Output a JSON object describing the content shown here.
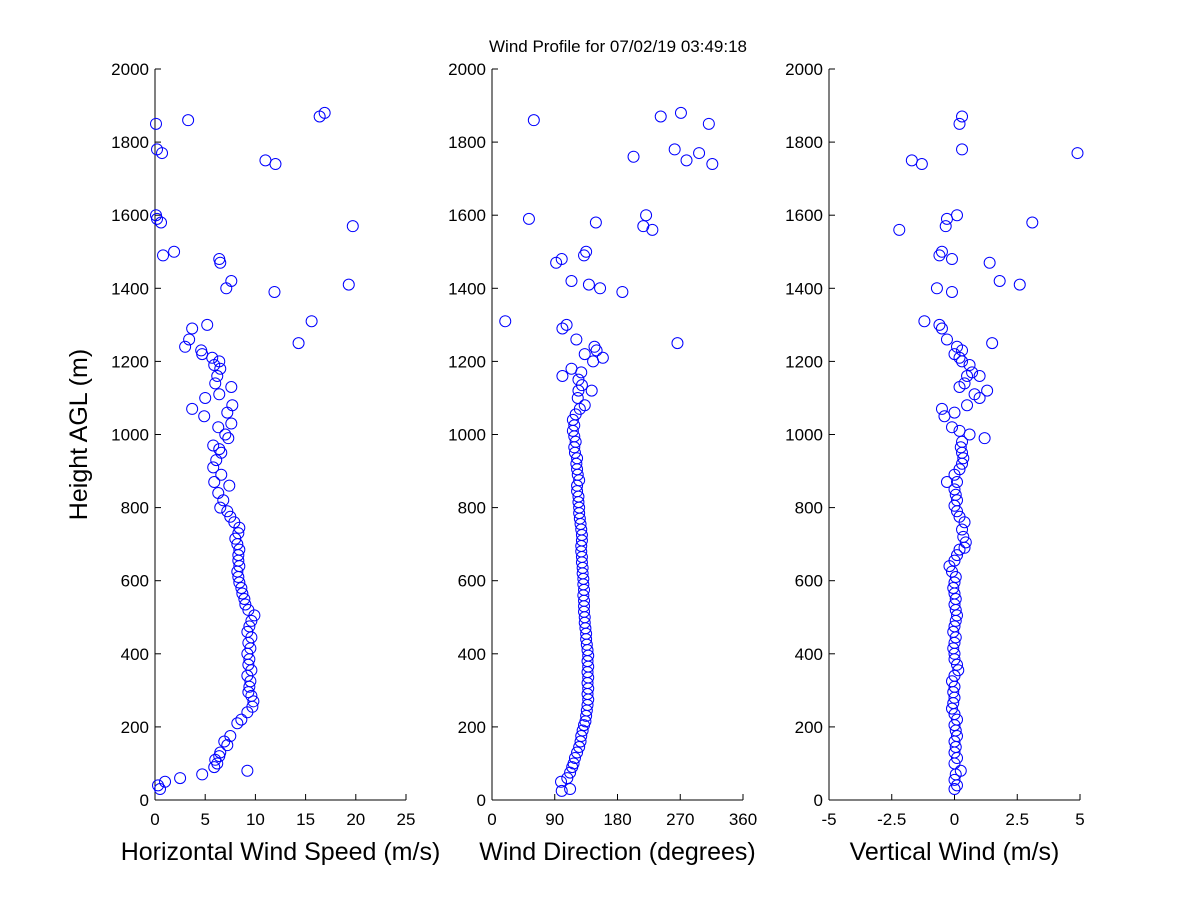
{
  "title": "Wind Profile for  07/02/19 03:49:18",
  "chart_data": [
    {
      "type": "scatter",
      "xlabel": "Horizontal Wind Speed (m/s)",
      "ylabel": "Height AGL (m)",
      "xlim": [
        0,
        25
      ],
      "ylim": [
        0,
        2000
      ],
      "xticks": [
        "0",
        "5",
        "10",
        "15",
        "20",
        "25"
      ],
      "yticks": [
        "0",
        "200",
        "400",
        "600",
        "800",
        "1000",
        "1200",
        "1400",
        "1600",
        "1800",
        "2000"
      ],
      "marker_color": "#0000ff",
      "points": [
        [
          0.5,
          30
        ],
        [
          0.3,
          40
        ],
        [
          1.0,
          50
        ],
        [
          2.5,
          60
        ],
        [
          4.7,
          70
        ],
        [
          9.2,
          80
        ],
        [
          5.9,
          90
        ],
        [
          6.2,
          100
        ],
        [
          6.0,
          110
        ],
        [
          6.4,
          120
        ],
        [
          6.5,
          130
        ],
        [
          7.2,
          150
        ],
        [
          6.9,
          160
        ],
        [
          7.5,
          175
        ],
        [
          8.2,
          210
        ],
        [
          8.6,
          220
        ],
        [
          9.2,
          240
        ],
        [
          9.7,
          255
        ],
        [
          9.8,
          270
        ],
        [
          9.6,
          285
        ],
        [
          9.3,
          295
        ],
        [
          9.4,
          310
        ],
        [
          9.5,
          325
        ],
        [
          9.2,
          340
        ],
        [
          9.6,
          355
        ],
        [
          9.3,
          370
        ],
        [
          9.4,
          385
        ],
        [
          9.2,
          400
        ],
        [
          9.5,
          415
        ],
        [
          9.3,
          430
        ],
        [
          9.6,
          445
        ],
        [
          9.2,
          460
        ],
        [
          9.4,
          475
        ],
        [
          9.6,
          490
        ],
        [
          9.9,
          505
        ],
        [
          9.3,
          520
        ],
        [
          9.0,
          535
        ],
        [
          8.9,
          550
        ],
        [
          8.7,
          565
        ],
        [
          8.6,
          580
        ],
        [
          8.4,
          595
        ],
        [
          8.3,
          610
        ],
        [
          8.2,
          625
        ],
        [
          8.4,
          640
        ],
        [
          8.3,
          655
        ],
        [
          8.3,
          670
        ],
        [
          8.4,
          685
        ],
        [
          8.2,
          700
        ],
        [
          8.0,
          715
        ],
        [
          8.3,
          730
        ],
        [
          8.4,
          745
        ],
        [
          7.9,
          760
        ],
        [
          7.5,
          775
        ],
        [
          7.2,
          790
        ],
        [
          6.5,
          800
        ],
        [
          6.8,
          820
        ],
        [
          6.3,
          840
        ],
        [
          7.4,
          860
        ],
        [
          5.9,
          870
        ],
        [
          6.6,
          890
        ],
        [
          5.8,
          910
        ],
        [
          6.1,
          930
        ],
        [
          6.6,
          950
        ],
        [
          6.4,
          960
        ],
        [
          5.8,
          970
        ],
        [
          7.3,
          990
        ],
        [
          7.0,
          1000
        ],
        [
          6.3,
          1020
        ],
        [
          7.6,
          1030
        ],
        [
          4.9,
          1050
        ],
        [
          7.2,
          1060
        ],
        [
          7.7,
          1080
        ],
        [
          3.7,
          1070
        ],
        [
          5.0,
          1100
        ],
        [
          6.4,
          1110
        ],
        [
          7.6,
          1130
        ],
        [
          6.0,
          1140
        ],
        [
          6.2,
          1160
        ],
        [
          6.5,
          1180
        ],
        [
          5.9,
          1190
        ],
        [
          6.4,
          1200
        ],
        [
          5.7,
          1210
        ],
        [
          4.7,
          1220
        ],
        [
          4.6,
          1230
        ],
        [
          3.0,
          1240
        ],
        [
          3.4,
          1260
        ],
        [
          3.7,
          1290
        ],
        [
          5.2,
          1300
        ],
        [
          14.3,
          1250
        ],
        [
          15.6,
          1310
        ],
        [
          7.1,
          1400
        ],
        [
          7.6,
          1420
        ],
        [
          11.9,
          1390
        ],
        [
          19.3,
          1410
        ],
        [
          6.5,
          1470
        ],
        [
          6.4,
          1480
        ],
        [
          0.8,
          1490
        ],
        [
          1.9,
          1500
        ],
        [
          0.1,
          1600
        ],
        [
          0.6,
          1580
        ],
        [
          0.2,
          1590
        ],
        [
          19.7,
          1570
        ],
        [
          11.0,
          1750
        ],
        [
          12.0,
          1740
        ],
        [
          0.7,
          1770
        ],
        [
          0.2,
          1780
        ],
        [
          0.1,
          1850
        ],
        [
          3.3,
          1860
        ],
        [
          16.4,
          1870
        ],
        [
          16.9,
          1880
        ]
      ]
    },
    {
      "type": "scatter",
      "xlabel": "Wind Direction (degrees)",
      "ylabel": "",
      "xlim": [
        0,
        360
      ],
      "ylim": [
        0,
        2000
      ],
      "xticks": [
        "0",
        "90",
        "180",
        "270",
        "360"
      ],
      "yticks": [
        "0",
        "200",
        "400",
        "600",
        "800",
        "1000",
        "1200",
        "1400",
        "1600",
        "1800",
        "2000"
      ],
      "marker_color": "#0000ff",
      "points": [
        [
          100,
          25
        ],
        [
          112,
          30
        ],
        [
          99,
          50
        ],
        [
          108,
          60
        ],
        [
          112,
          75
        ],
        [
          115,
          90
        ],
        [
          117,
          100
        ],
        [
          119,
          115
        ],
        [
          122,
          130
        ],
        [
          125,
          145
        ],
        [
          127,
          160
        ],
        [
          128,
          175
        ],
        [
          130,
          190
        ],
        [
          132,
          205
        ],
        [
          134,
          215
        ],
        [
          135,
          230
        ],
        [
          136,
          245
        ],
        [
          137,
          260
        ],
        [
          138,
          275
        ],
        [
          137,
          290
        ],
        [
          138,
          305
        ],
        [
          137,
          320
        ],
        [
          138,
          335
        ],
        [
          137,
          350
        ],
        [
          138,
          365
        ],
        [
          137,
          380
        ],
        [
          138,
          395
        ],
        [
          137,
          410
        ],
        [
          136,
          425
        ],
        [
          135,
          440
        ],
        [
          135,
          455
        ],
        [
          134,
          470
        ],
        [
          133,
          485
        ],
        [
          133,
          500
        ],
        [
          132,
          515
        ],
        [
          132,
          530
        ],
        [
          132,
          545
        ],
        [
          131,
          560
        ],
        [
          132,
          575
        ],
        [
          131,
          590
        ],
        [
          131,
          605
        ],
        [
          130,
          620
        ],
        [
          130,
          635
        ],
        [
          129,
          650
        ],
        [
          129,
          665
        ],
        [
          128,
          680
        ],
        [
          128,
          695
        ],
        [
          129,
          710
        ],
        [
          129,
          725
        ],
        [
          128,
          740
        ],
        [
          127,
          755
        ],
        [
          126,
          770
        ],
        [
          125,
          785
        ],
        [
          125,
          800
        ],
        [
          124,
          815
        ],
        [
          124,
          830
        ],
        [
          122,
          845
        ],
        [
          122,
          860
        ],
        [
          125,
          875
        ],
        [
          123,
          890
        ],
        [
          122,
          905
        ],
        [
          121,
          920
        ],
        [
          122,
          935
        ],
        [
          119,
          950
        ],
        [
          118,
          965
        ],
        [
          120,
          980
        ],
        [
          118,
          995
        ],
        [
          116,
          1010
        ],
        [
          118,
          1025
        ],
        [
          116,
          1040
        ],
        [
          120,
          1055
        ],
        [
          126,
          1070
        ],
        [
          133,
          1080
        ],
        [
          123,
          1100
        ],
        [
          124,
          1120
        ],
        [
          129,
          1135
        ],
        [
          143,
          1120
        ],
        [
          124,
          1150
        ],
        [
          101,
          1160
        ],
        [
          128,
          1170
        ],
        [
          114,
          1180
        ],
        [
          145,
          1200
        ],
        [
          159,
          1210
        ],
        [
          133,
          1220
        ],
        [
          147,
          1240
        ],
        [
          150,
          1230
        ],
        [
          121,
          1260
        ],
        [
          101,
          1290
        ],
        [
          107,
          1300
        ],
        [
          19,
          1310
        ],
        [
          266,
          1250
        ],
        [
          114,
          1420
        ],
        [
          132,
          1490
        ],
        [
          135,
          1500
        ],
        [
          139,
          1410
        ],
        [
          155,
          1400
        ],
        [
          187,
          1390
        ],
        [
          92,
          1470
        ],
        [
          100,
          1480
        ],
        [
          53,
          1590
        ],
        [
          149,
          1580
        ],
        [
          221,
          1600
        ],
        [
          217,
          1570
        ],
        [
          230,
          1560
        ],
        [
          203,
          1760
        ],
        [
          262,
          1780
        ],
        [
          279,
          1750
        ],
        [
          297,
          1770
        ],
        [
          316,
          1740
        ],
        [
          60,
          1860
        ],
        [
          242,
          1870
        ],
        [
          271,
          1880
        ],
        [
          311,
          1850
        ]
      ]
    },
    {
      "type": "scatter",
      "xlabel": "Vertical Wind (m/s)",
      "ylabel": "",
      "xlim": [
        -5,
        5
      ],
      "ylim": [
        0,
        2000
      ],
      "xticks": [
        "-5",
        "-2.5",
        "0",
        "2.5",
        "5"
      ],
      "yticks": [
        "0",
        "200",
        "400",
        "600",
        "800",
        "1000",
        "1200",
        "1400",
        "1600",
        "1800",
        "2000"
      ],
      "marker_color": "#0000ff",
      "points": [
        [
          0.0,
          30
        ],
        [
          0.1,
          40
        ],
        [
          0.0,
          55
        ],
        [
          0.25,
          80
        ],
        [
          0.05,
          70
        ],
        [
          0.0,
          100
        ],
        [
          0.1,
          115
        ],
        [
          0.0,
          130
        ],
        [
          0.05,
          145
        ],
        [
          0.0,
          160
        ],
        [
          0.1,
          175
        ],
        [
          0.05,
          190
        ],
        [
          0.0,
          205
        ],
        [
          0.1,
          220
        ],
        [
          0.0,
          235
        ],
        [
          -0.1,
          250
        ],
        [
          -0.05,
          265
        ],
        [
          0.0,
          280
        ],
        [
          -0.05,
          295
        ],
        [
          0.0,
          310
        ],
        [
          -0.1,
          325
        ],
        [
          0.0,
          340
        ],
        [
          0.15,
          355
        ],
        [
          0.1,
          370
        ],
        [
          0.0,
          385
        ],
        [
          0.0,
          400
        ],
        [
          -0.05,
          415
        ],
        [
          0.0,
          430
        ],
        [
          0.05,
          445
        ],
        [
          -0.05,
          460
        ],
        [
          0.0,
          475
        ],
        [
          0.05,
          490
        ],
        [
          0.1,
          505
        ],
        [
          0.05,
          520
        ],
        [
          0.0,
          535
        ],
        [
          0.05,
          550
        ],
        [
          0.0,
          565
        ],
        [
          -0.05,
          580
        ],
        [
          0.0,
          595
        ],
        [
          0.05,
          610
        ],
        [
          -0.1,
          625
        ],
        [
          -0.2,
          640
        ],
        [
          0.0,
          655
        ],
        [
          0.1,
          670
        ],
        [
          0.2,
          685
        ],
        [
          0.4,
          690
        ],
        [
          0.45,
          705
        ],
        [
          0.35,
          720
        ],
        [
          0.3,
          740
        ],
        [
          0.4,
          760
        ],
        [
          0.2,
          775
        ],
        [
          0.1,
          790
        ],
        [
          0.0,
          805
        ],
        [
          0.1,
          820
        ],
        [
          0.05,
          835
        ],
        [
          0.0,
          850
        ],
        [
          -0.3,
          870
        ],
        [
          0.1,
          870
        ],
        [
          0.0,
          890
        ],
        [
          0.2,
          905
        ],
        [
          0.3,
          920
        ],
        [
          0.35,
          935
        ],
        [
          0.3,
          950
        ],
        [
          0.25,
          965
        ],
        [
          0.3,
          980
        ],
        [
          0.6,
          1000
        ],
        [
          1.2,
          990
        ],
        [
          0.2,
          1010
        ],
        [
          -0.1,
          1020
        ],
        [
          -0.4,
          1050
        ],
        [
          -0.5,
          1070
        ],
        [
          0.0,
          1060
        ],
        [
          0.5,
          1080
        ],
        [
          1.0,
          1100
        ],
        [
          1.3,
          1120
        ],
        [
          0.8,
          1110
        ],
        [
          0.4,
          1140
        ],
        [
          0.2,
          1130
        ],
        [
          0.5,
          1160
        ],
        [
          0.7,
          1170
        ],
        [
          0.6,
          1190
        ],
        [
          0.3,
          1200
        ],
        [
          0.2,
          1210
        ],
        [
          0.0,
          1220
        ],
        [
          1.0,
          1160
        ],
        [
          0.3,
          1230
        ],
        [
          0.1,
          1240
        ],
        [
          -0.3,
          1260
        ],
        [
          -0.5,
          1290
        ],
        [
          -0.6,
          1300
        ],
        [
          -1.2,
          1310
        ],
        [
          1.5,
          1250
        ],
        [
          -0.7,
          1400
        ],
        [
          -0.1,
          1390
        ],
        [
          1.4,
          1470
        ],
        [
          -0.1,
          1480
        ],
        [
          -0.6,
          1490
        ],
        [
          -0.5,
          1500
        ],
        [
          1.8,
          1420
        ],
        [
          2.6,
          1410
        ],
        [
          -2.2,
          1560
        ],
        [
          -0.35,
          1570
        ],
        [
          -0.3,
          1590
        ],
        [
          0.1,
          1600
        ],
        [
          3.1,
          1580
        ],
        [
          -1.7,
          1750
        ],
        [
          -1.3,
          1740
        ],
        [
          0.3,
          1780
        ],
        [
          0.2,
          1850
        ],
        [
          0.3,
          1870
        ],
        [
          4.9,
          1770
        ]
      ]
    }
  ]
}
